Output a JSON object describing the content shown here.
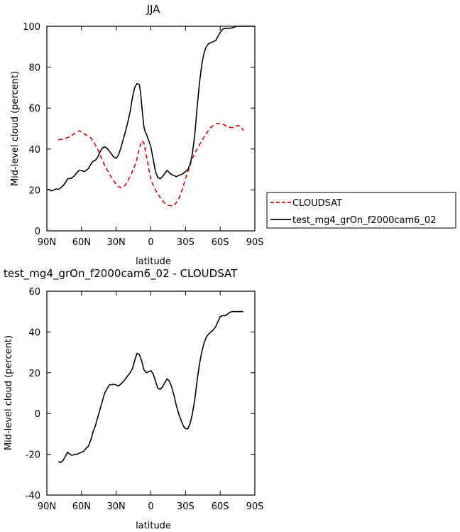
{
  "chart_data": [
    {
      "type": "line",
      "title": "JJA",
      "xlabel": "latitude",
      "ylabel": "Mid-level cloud (percent)",
      "xlim": [
        90,
        -90
      ],
      "ylim": [
        0,
        100
      ],
      "xticks": [
        90,
        60,
        30,
        0,
        -30,
        -60,
        -90
      ],
      "xtick_labels": [
        "90N",
        "60N",
        "30N",
        "0",
        "30S",
        "60S",
        "90S"
      ],
      "yticks": [
        0,
        20,
        40,
        60,
        80,
        100
      ],
      "ytick_labels": [
        "0",
        "20",
        "40",
        "60",
        "80",
        "100"
      ],
      "grid": false,
      "legend_position": "right",
      "series": [
        {
          "name": "CLOUDSAT",
          "color": "#e00000",
          "dash": "dashed",
          "x": [
            80,
            75,
            70,
            65,
            62,
            58,
            55,
            52,
            49,
            46,
            43,
            40,
            37,
            34,
            31,
            28,
            25,
            22,
            19,
            16,
            13,
            10,
            8,
            6,
            4,
            2,
            0,
            -3,
            -6,
            -9,
            -12,
            -15,
            -18,
            -21,
            -24,
            -27,
            -30,
            -33,
            -36,
            -39,
            -42,
            -45,
            -48,
            -51,
            -54,
            -57,
            -60,
            -63,
            -66,
            -69,
            -72,
            -75,
            -78,
            -80
          ],
          "y": [
            44.5,
            45,
            46,
            48,
            49,
            47.5,
            46.5,
            45.5,
            43,
            40,
            36,
            32,
            29,
            26,
            23.5,
            21.5,
            21,
            22.5,
            25.5,
            29,
            33,
            40,
            44,
            43,
            37,
            31,
            25,
            21,
            18,
            15.5,
            13.5,
            12.5,
            12.2,
            13,
            15.5,
            20,
            25.5,
            30.5,
            35.5,
            39,
            42,
            45,
            47.5,
            50,
            51.5,
            52.5,
            52.5,
            52,
            51,
            50.5,
            50.5,
            51.5,
            51,
            49
          ]
        },
        {
          "name": "test_mg4_grOn_f2000cam6_02",
          "color": "#000000",
          "dash": "solid",
          "x": [
            90,
            88,
            86,
            84,
            82,
            80,
            78,
            76,
            74,
            72,
            70,
            68,
            66,
            64,
            62,
            60,
            58,
            56,
            54,
            52,
            50,
            48,
            46,
            44,
            42,
            40,
            38,
            36,
            34,
            32,
            30,
            28,
            26,
            24,
            22,
            20,
            18,
            16,
            14,
            12,
            10,
            9,
            8,
            7,
            6,
            5,
            4,
            2,
            0,
            -2,
            -4,
            -6,
            -8,
            -10,
            -12,
            -14,
            -16,
            -18,
            -20,
            -22,
            -24,
            -26,
            -28,
            -30,
            -32,
            -34,
            -36,
            -38,
            -40,
            -42,
            -44,
            -46,
            -48,
            -50,
            -52,
            -54,
            -56,
            -58,
            -60,
            -62,
            -64,
            -66,
            -68,
            -70,
            -72,
            -74,
            -76,
            -78,
            -80,
            -82,
            -84,
            -86,
            -88,
            -90
          ],
          "y": [
            20,
            20.2,
            19.5,
            20,
            20.5,
            20.3,
            21,
            22,
            23.5,
            25.5,
            25.5,
            26,
            27,
            28.5,
            29.5,
            29.5,
            29,
            29.5,
            30.5,
            32.5,
            34,
            34.5,
            36,
            38.5,
            40.5,
            41,
            40.5,
            39,
            37.5,
            36,
            35.5,
            37,
            40.5,
            44.5,
            48.5,
            53,
            58,
            65,
            70,
            72,
            71.5,
            68,
            62,
            56,
            51,
            48.5,
            47.5,
            44.5,
            41,
            35,
            29,
            26,
            25.5,
            26.5,
            28,
            29.5,
            28.5,
            27.5,
            27,
            26.5,
            27,
            27.5,
            28,
            29,
            30,
            32.5,
            38,
            47,
            60,
            72,
            81,
            87,
            90,
            91.5,
            92,
            92.5,
            93,
            95,
            97,
            98.5,
            99,
            99,
            99,
            99.2,
            99.5,
            100,
            100,
            100,
            100,
            100,
            100,
            100,
            100,
            100
          ]
        }
      ]
    },
    {
      "type": "line",
      "title": "test_mg4_grOn_f2000cam6_02 - CLOUDSAT",
      "xlabel": "latitude",
      "ylabel": "Mid-level cloud (percent)",
      "xlim": [
        90,
        -90
      ],
      "ylim": [
        -40,
        60
      ],
      "xticks": [
        90,
        60,
        30,
        0,
        -30,
        -60,
        -90
      ],
      "xtick_labels": [
        "90N",
        "60N",
        "30N",
        "0",
        "30S",
        "60S",
        "90S"
      ],
      "yticks": [
        -40,
        -20,
        0,
        20,
        40,
        60
      ],
      "ytick_labels": [
        "-40",
        "-20",
        "0",
        "20",
        "40",
        "60"
      ],
      "grid": false,
      "series": [
        {
          "color": "#000000",
          "dash": "solid",
          "x": [
            80,
            78,
            76,
            74,
            72,
            70,
            68,
            66,
            64,
            62,
            60,
            58,
            56,
            54,
            52,
            50,
            48,
            46,
            44,
            42,
            40,
            38,
            36,
            34,
            32,
            30,
            28,
            26,
            24,
            22,
            20,
            18,
            16,
            14,
            12,
            10,
            8,
            6,
            4,
            2,
            0,
            -2,
            -4,
            -6,
            -8,
            -10,
            -12,
            -14,
            -16,
            -18,
            -20,
            -22,
            -24,
            -26,
            -28,
            -30,
            -32,
            -34,
            -36,
            -38,
            -40,
            -42,
            -44,
            -46,
            -48,
            -50,
            -52,
            -54,
            -56,
            -58,
            -60,
            -62,
            -64,
            -66,
            -68,
            -70,
            -72,
            -74,
            -76,
            -78,
            -80
          ],
          "y": [
            -23.5,
            -24,
            -23,
            -21,
            -19,
            -20,
            -20.5,
            -20,
            -20,
            -19.5,
            -19,
            -18.5,
            -17,
            -16,
            -13,
            -9,
            -6,
            -2,
            2,
            6,
            10,
            12,
            14,
            14.2,
            14.3,
            14,
            13.5,
            14.5,
            15.5,
            17,
            18.5,
            20,
            22,
            26,
            29.5,
            29,
            26,
            21.5,
            20,
            20.5,
            21,
            19.5,
            16,
            12.5,
            11.8,
            13,
            15,
            17,
            16,
            13,
            9,
            4,
            0,
            -3,
            -6,
            -7.5,
            -7.5,
            -5,
            0,
            7,
            16,
            24,
            30,
            34.5,
            37.5,
            39,
            40,
            41,
            42.5,
            45,
            47.5,
            48,
            48,
            48.5,
            49.5,
            50,
            50,
            50,
            50,
            50,
            50
          ]
        }
      ]
    }
  ]
}
